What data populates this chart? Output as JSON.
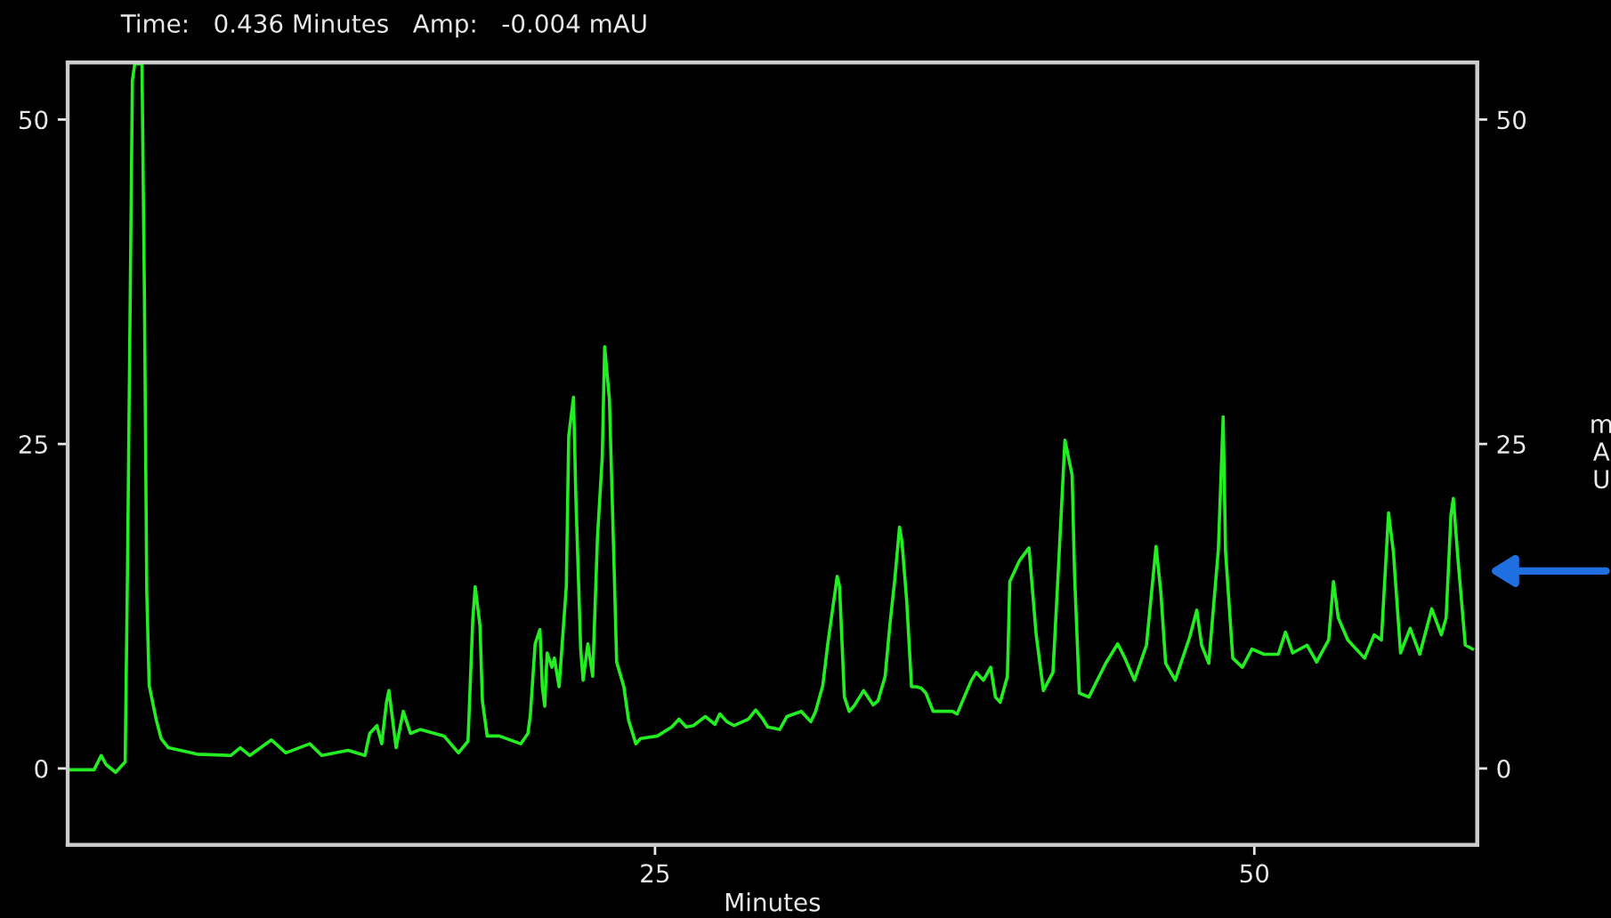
{
  "chart_data": {
    "type": "line",
    "xlabel": "Minutes",
    "y2label": "mAU",
    "annotations": [
      "Time:   0.436 Minutes   Amp:   -0.004 mAU"
    ],
    "x": [
      0.6,
      1.6,
      1.9,
      2.1,
      2.5,
      2.9,
      3.0,
      3.2,
      3.3,
      3.6,
      3.7,
      3.8,
      3.9,
      4.2,
      4.4,
      4.7,
      5.9,
      7.3,
      7.7,
      8.1,
      9.0,
      9.6,
      10.6,
      11.1,
      12.2,
      12.9,
      13.1,
      13.4,
      13.6,
      13.8,
      13.9,
      14.2,
      14.5,
      14.8,
      15.2,
      16.2,
      16.8,
      17.2,
      17.4,
      17.5,
      17.7,
      17.8,
      18.0,
      18.5,
      19.4,
      19.7,
      19.8,
      20.0,
      20.2,
      20.3,
      20.4,
      20.5,
      20.7,
      20.8,
      21.0,
      21.3,
      21.4,
      21.6,
      21.7,
      21.9,
      22.0,
      22.2,
      22.4,
      22.6,
      22.8,
      22.9,
      23.1,
      23.3,
      23.4,
      23.7,
      23.9,
      24.2,
      24.4,
      25.1,
      25.7,
      26.0,
      26.3,
      26.6,
      27.1,
      27.5,
      27.7,
      28.0,
      28.3,
      28.9,
      29.2,
      29.5,
      29.7,
      30.2,
      30.5,
      31.1,
      31.5,
      31.7,
      32.0,
      32.2,
      32.6,
      32.7,
      32.9,
      33.1,
      33.3,
      33.7,
      34.1,
      34.3,
      34.6,
      34.8,
      35.0,
      35.2,
      35.3,
      35.5,
      35.7,
      35.9,
      36.1,
      36.3,
      36.6,
      37.4,
      37.6,
      38.2,
      38.4,
      38.7,
      39.0,
      39.2,
      39.4,
      39.7,
      39.8,
      40.2,
      40.6,
      40.9,
      41.2,
      41.6,
      41.8,
      42.1,
      42.4,
      42.5,
      42.7,
      43.1,
      43.8,
      44.3,
      44.6,
      45.0,
      45.5,
      45.9,
      46.1,
      46.3,
      46.7,
      47.3,
      47.6,
      47.8,
      48.1,
      48.5,
      48.7,
      48.8,
      49.1,
      49.5,
      49.9,
      50.4,
      51.0,
      51.3,
      51.6,
      52.2,
      52.6,
      53.1,
      53.3,
      53.5,
      53.9,
      54.6,
      55.0,
      55.3,
      55.6,
      55.8,
      56.1,
      56.5,
      56.9,
      57.4,
      57.8,
      58.0,
      58.2,
      58.3,
      58.5,
      58.8,
      59.1
    ],
    "series": [
      {
        "color": "#22ee22",
        "values": [
          -0.1,
          -0.1,
          1.0,
          0.3,
          -0.3,
          0.5,
          16.0,
          53.0,
          54.3,
          54.3,
          36.8,
          13.6,
          6.4,
          3.7,
          2.3,
          1.6,
          1.1,
          1.0,
          1.6,
          1.0,
          2.2,
          1.2,
          1.9,
          1.0,
          1.4,
          1.0,
          2.7,
          3.3,
          1.9,
          5.1,
          6.0,
          1.6,
          4.4,
          2.7,
          3.0,
          2.5,
          1.2,
          2.1,
          11.5,
          14.0,
          11.0,
          5.2,
          2.5,
          2.5,
          1.9,
          2.7,
          4.1,
          9.6,
          10.7,
          6.3,
          4.8,
          8.9,
          7.8,
          8.5,
          6.3,
          14.0,
          25.6,
          28.6,
          20.8,
          9.2,
          6.8,
          9.6,
          7.1,
          17.8,
          24.0,
          32.5,
          28.4,
          15.1,
          8.2,
          6.3,
          3.7,
          1.9,
          2.3,
          2.5,
          3.2,
          3.8,
          3.2,
          3.3,
          4.0,
          3.4,
          4.2,
          3.6,
          3.3,
          3.8,
          4.5,
          3.8,
          3.2,
          3.0,
          4.0,
          4.4,
          3.6,
          4.4,
          6.4,
          9.5,
          14.8,
          14.0,
          5.5,
          4.4,
          4.8,
          6.0,
          4.9,
          5.2,
          7.1,
          11.1,
          14.5,
          18.6,
          17.5,
          12.9,
          6.3,
          6.3,
          6.2,
          5.8,
          4.4,
          4.4,
          4.2,
          6.8,
          7.4,
          6.8,
          7.8,
          5.5,
          5.1,
          7.1,
          14.4,
          16.0,
          17.0,
          10.3,
          6.0,
          7.4,
          14.4,
          25.3,
          22.6,
          15.0,
          5.8,
          5.5,
          8.1,
          9.6,
          8.5,
          6.8,
          9.5,
          17.1,
          13.6,
          8.1,
          6.8,
          10.1,
          12.2,
          9.5,
          8.1,
          16.9,
          27.1,
          16.7,
          8.5,
          7.8,
          9.2,
          8.8,
          8.8,
          10.5,
          8.9,
          9.5,
          8.2,
          9.9,
          14.4,
          11.6,
          9.9,
          8.5,
          10.3,
          9.9,
          19.7,
          16.7,
          8.9,
          10.8,
          8.8,
          12.3,
          10.3,
          11.6,
          19.5,
          20.8,
          16.0,
          9.5,
          9.2
        ]
      }
    ],
    "xlim": [
      0.5,
      59.3
    ],
    "ylim": [
      -5.9,
      54.4
    ],
    "xticks": [
      25,
      50
    ],
    "yticks": [
      0,
      25,
      50
    ],
    "y2lim": [
      -5.9,
      54.4
    ],
    "y2ticks": [
      0,
      25,
      50
    ],
    "grid": false
  }
}
